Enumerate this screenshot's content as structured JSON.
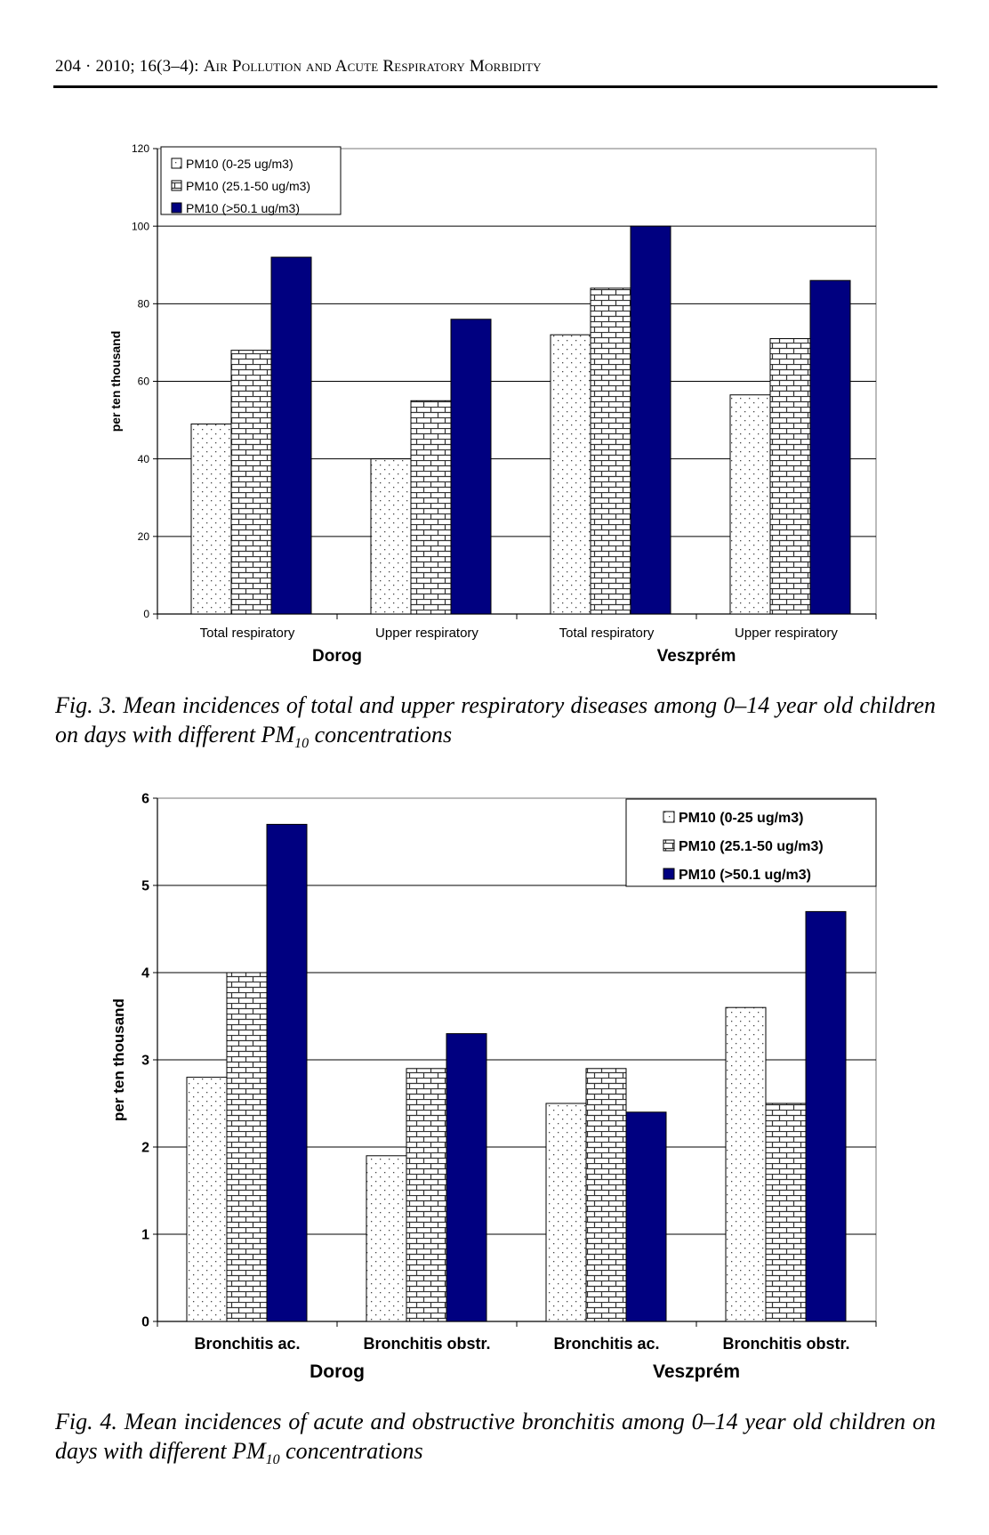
{
  "header": {
    "prefix": "204 · 2010; 16(3–4): ",
    "title": "Air Pollution and Acute Respiratory Morbidity"
  },
  "colors": {
    "low": "#ffffff",
    "mid": "#ffffff",
    "high": "#000080"
  },
  "figures": [
    {
      "caption_before": "Fig. 3. Mean incidences of total and upper respiratory diseases among 0–14 year old children on days with different PM",
      "caption_sub": "10",
      "caption_after": " concentrations",
      "chart_data": {
        "type": "bar",
        "categories": [
          "Total respiratory",
          "Upper respiratory",
          "Total respiratory",
          "Upper respiratory"
        ],
        "groups": [
          {
            "label": "Dorog",
            "categories": [
              0,
              1
            ]
          },
          {
            "label": "Veszprém",
            "categories": [
              2,
              3
            ]
          }
        ],
        "series": [
          {
            "name": "PM10 (0-25 ug/m3)",
            "values": [
              49,
              40,
              72,
              56.5
            ],
            "pattern": "dots"
          },
          {
            "name": "PM10 (25.1-50 ug/m3)",
            "values": [
              68,
              55,
              84,
              71
            ],
            "pattern": "bricks"
          },
          {
            "name": "PM10 (>50.1 ug/m3)",
            "values": [
              92,
              76,
              100,
              86
            ],
            "pattern": "solid"
          }
        ],
        "ylabel": "per ten thousand",
        "ylim": [
          0,
          120
        ],
        "yticks": [
          0,
          20,
          40,
          60,
          80,
          100,
          120
        ],
        "grid": true,
        "legend": "top-left"
      }
    },
    {
      "caption_before": "Fig. 4. Mean incidences of acute and obstructive bronchitis among 0–14 year old children on days with different PM",
      "caption_sub": "10",
      "caption_after": " concentrations",
      "chart_data": {
        "type": "bar",
        "categories": [
          "Bronchitis ac.",
          "Bronchitis obstr.",
          "Bronchitis ac.",
          "Bronchitis obstr."
        ],
        "groups": [
          {
            "label": "Dorog",
            "categories": [
              0,
              1
            ]
          },
          {
            "label": "Veszprém",
            "categories": [
              2,
              3
            ]
          }
        ],
        "series": [
          {
            "name": "PM10 (0-25 ug/m3)",
            "values": [
              2.8,
              1.9,
              2.5,
              3.6
            ],
            "pattern": "dots"
          },
          {
            "name": "PM10 (25.1-50 ug/m3)",
            "values": [
              4.0,
              2.9,
              2.9,
              2.5
            ],
            "pattern": "bricks"
          },
          {
            "name": "PM10 (>50.1 ug/m3)",
            "values": [
              5.7,
              3.3,
              2.4,
              4.7
            ],
            "pattern": "solid"
          }
        ],
        "ylabel": "per ten thousand",
        "ylim": [
          0,
          6
        ],
        "yticks": [
          0,
          1,
          2,
          3,
          4,
          5,
          6
        ],
        "grid": true,
        "legend": "top-right"
      }
    }
  ]
}
